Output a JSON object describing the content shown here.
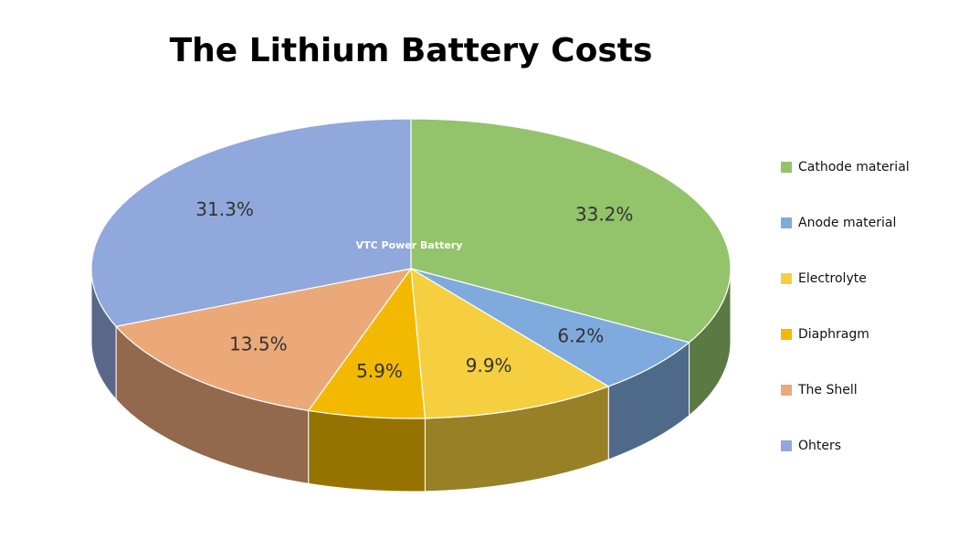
{
  "chart_data": {
    "type": "pie3d",
    "title": "The Lithium Battery Costs",
    "watermark": "VTC Power Battery",
    "categories": [
      "Cathode material",
      "Anode material",
      "Electrolyte",
      "Diaphragm",
      "The Shell",
      "Ohters"
    ],
    "values": [
      33.2,
      6.2,
      9.9,
      5.9,
      13.5,
      31.3
    ],
    "value_labels": [
      "33.2%",
      "6.2%",
      "9.9%",
      "5.9%",
      "13.5%",
      "31.3%"
    ],
    "colors": [
      "#93c36a",
      "#7faadd",
      "#f5cf3f",
      "#f2b900",
      "#eba97a",
      "#90a8db"
    ],
    "legend": "right"
  }
}
